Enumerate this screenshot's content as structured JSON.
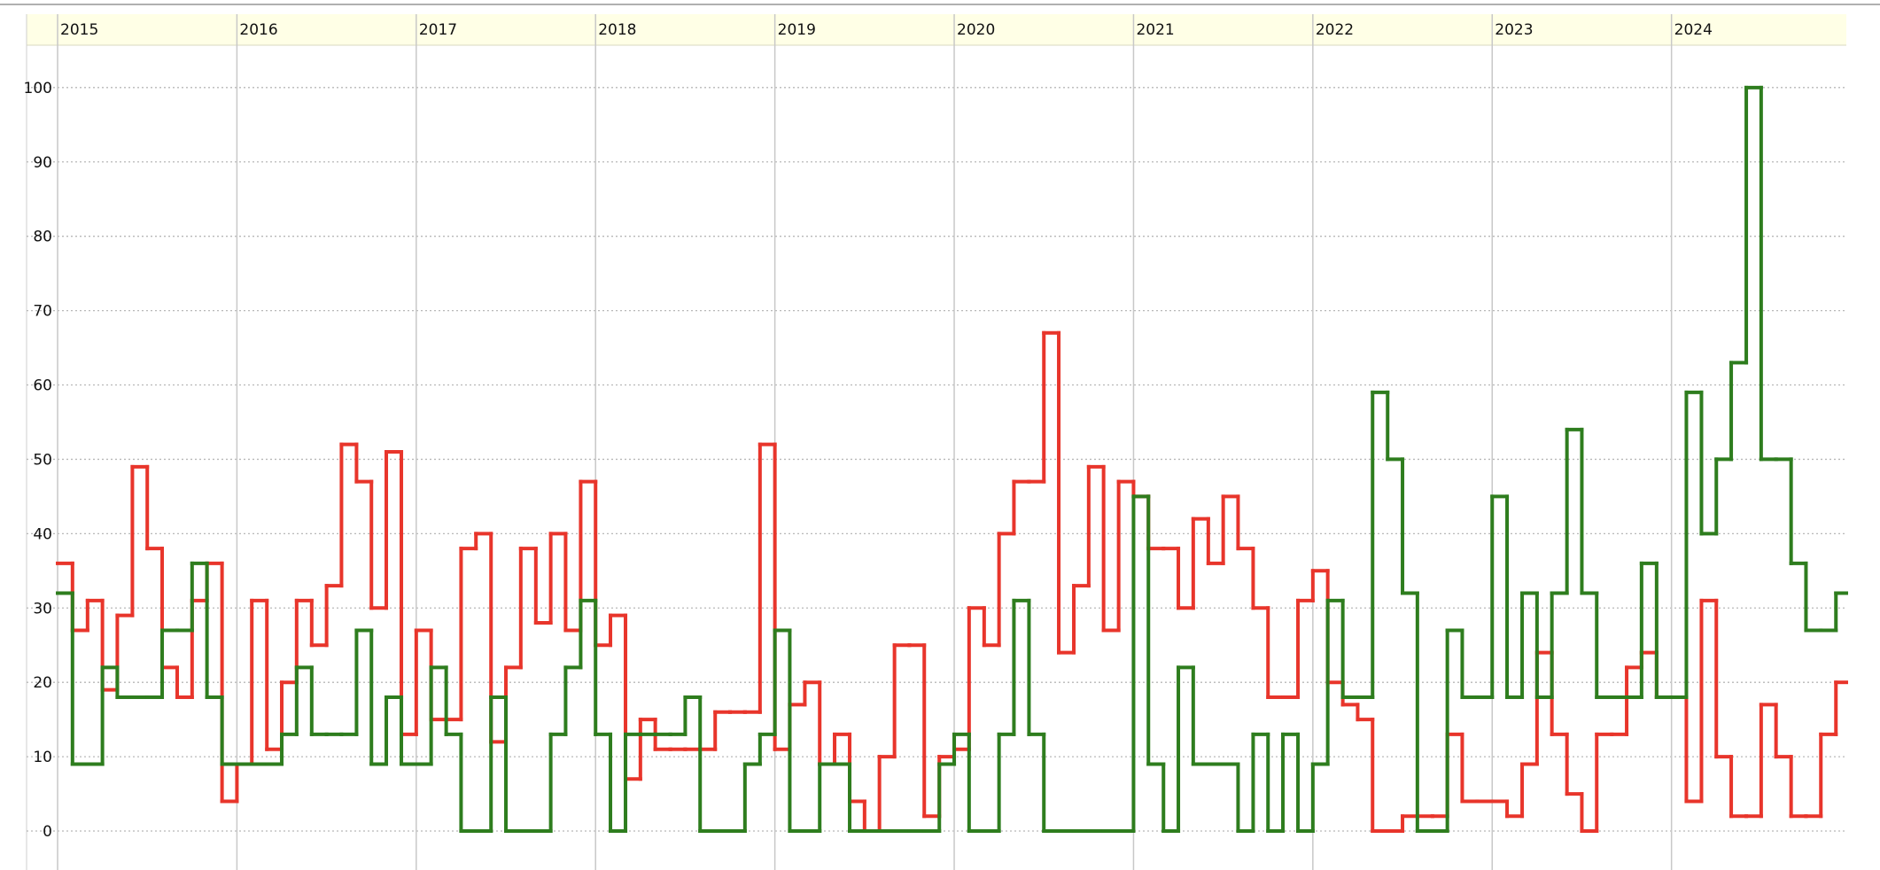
{
  "chart_data": {
    "type": "line",
    "step": "post",
    "grid": true,
    "xlim": [
      2014.827,
      2024.975
    ],
    "xticks": [
      2015,
      2016,
      2017,
      2018,
      2019,
      2020,
      2021,
      2022,
      2023,
      2024
    ],
    "ylim": [
      -5.24,
      105.7
    ],
    "yticks": [
      0,
      10,
      20,
      30,
      40,
      50,
      60,
      70,
      80,
      90,
      100
    ],
    "x": [
      2015,
      2015.083,
      2015.167,
      2015.25,
      2015.333,
      2015.417,
      2015.5,
      2015.583,
      2015.667,
      2015.75,
      2015.833,
      2015.917,
      2016,
      2016.083,
      2016.167,
      2016.25,
      2016.333,
      2016.417,
      2016.5,
      2016.583,
      2016.667,
      2016.75,
      2016.833,
      2016.917,
      2017,
      2017.083,
      2017.167,
      2017.25,
      2017.333,
      2017.417,
      2017.5,
      2017.583,
      2017.667,
      2017.75,
      2017.833,
      2017.917,
      2018,
      2018.083,
      2018.167,
      2018.25,
      2018.333,
      2018.417,
      2018.5,
      2018.583,
      2018.667,
      2018.75,
      2018.833,
      2018.917,
      2019,
      2019.083,
      2019.167,
      2019.25,
      2019.333,
      2019.417,
      2019.5,
      2019.583,
      2019.667,
      2019.75,
      2019.833,
      2019.917,
      2020,
      2020.083,
      2020.167,
      2020.25,
      2020.333,
      2020.417,
      2020.5,
      2020.583,
      2020.667,
      2020.75,
      2020.833,
      2020.917,
      2021,
      2021.083,
      2021.167,
      2021.25,
      2021.333,
      2021.417,
      2021.5,
      2021.583,
      2021.667,
      2021.75,
      2021.833,
      2021.917,
      2022,
      2022.083,
      2022.167,
      2022.25,
      2022.333,
      2022.417,
      2022.5,
      2022.583,
      2022.667,
      2022.75,
      2022.833,
      2022.917,
      2023,
      2023.083,
      2023.167,
      2023.25,
      2023.333,
      2023.417,
      2023.5,
      2023.583,
      2023.667,
      2023.75,
      2023.833,
      2023.917,
      2024,
      2024.083,
      2024.167,
      2024.25,
      2024.333,
      2024.417,
      2024.5,
      2024.583,
      2024.667,
      2024.75,
      2024.833,
      2024.917
    ],
    "series": [
      {
        "color": "#e8352b",
        "values": [
          36,
          27,
          31,
          19,
          29,
          49,
          38,
          22,
          18,
          31,
          36,
          4,
          9,
          31,
          11,
          20,
          31,
          25,
          33,
          52,
          47,
          30,
          51,
          13,
          27,
          15,
          15,
          38,
          40,
          12,
          22,
          38,
          28,
          40,
          27,
          47,
          25,
          29,
          7,
          15,
          11,
          11,
          11,
          11,
          16,
          16,
          16,
          52,
          11,
          17,
          20,
          9,
          13,
          4,
          0,
          10,
          25,
          25,
          2,
          10,
          11,
          30,
          25,
          40,
          47,
          47,
          67,
          24,
          33,
          49,
          27,
          47,
          45,
          38,
          38,
          30,
          42,
          36,
          45,
          38,
          30,
          18,
          18,
          31,
          35,
          20,
          17,
          15,
          0,
          0,
          2,
          2,
          2,
          13,
          4,
          4,
          4,
          2,
          9,
          24,
          13,
          5,
          0,
          13,
          13,
          22,
          24,
          18,
          18,
          4,
          31,
          10,
          2,
          2,
          17,
          10,
          2,
          2,
          13,
          20
        ]
      },
      {
        "color": "#2e7d1e",
        "values": [
          32,
          9,
          9,
          22,
          18,
          18,
          18,
          27,
          27,
          36,
          18,
          9,
          9,
          9,
          9,
          13,
          22,
          13,
          13,
          13,
          27,
          9,
          18,
          9,
          9,
          22,
          13,
          0,
          0,
          18,
          0,
          0,
          0,
          13,
          22,
          31,
          13,
          0,
          13,
          13,
          13,
          13,
          18,
          0,
          0,
          0,
          9,
          13,
          27,
          0,
          0,
          9,
          9,
          0,
          0,
          0,
          0,
          0,
          0,
          9,
          13,
          0,
          0,
          13,
          31,
          13,
          0,
          0,
          0,
          0,
          0,
          0,
          45,
          9,
          0,
          22,
          9,
          9,
          9,
          0,
          13,
          0,
          13,
          0,
          9,
          31,
          18,
          18,
          59,
          50,
          32,
          0,
          0,
          27,
          18,
          18,
          45,
          18,
          32,
          18,
          32,
          54,
          32,
          18,
          18,
          18,
          36,
          18,
          18,
          59,
          40,
          50,
          63,
          100,
          50,
          50,
          36,
          27,
          27,
          32
        ]
      }
    ]
  }
}
